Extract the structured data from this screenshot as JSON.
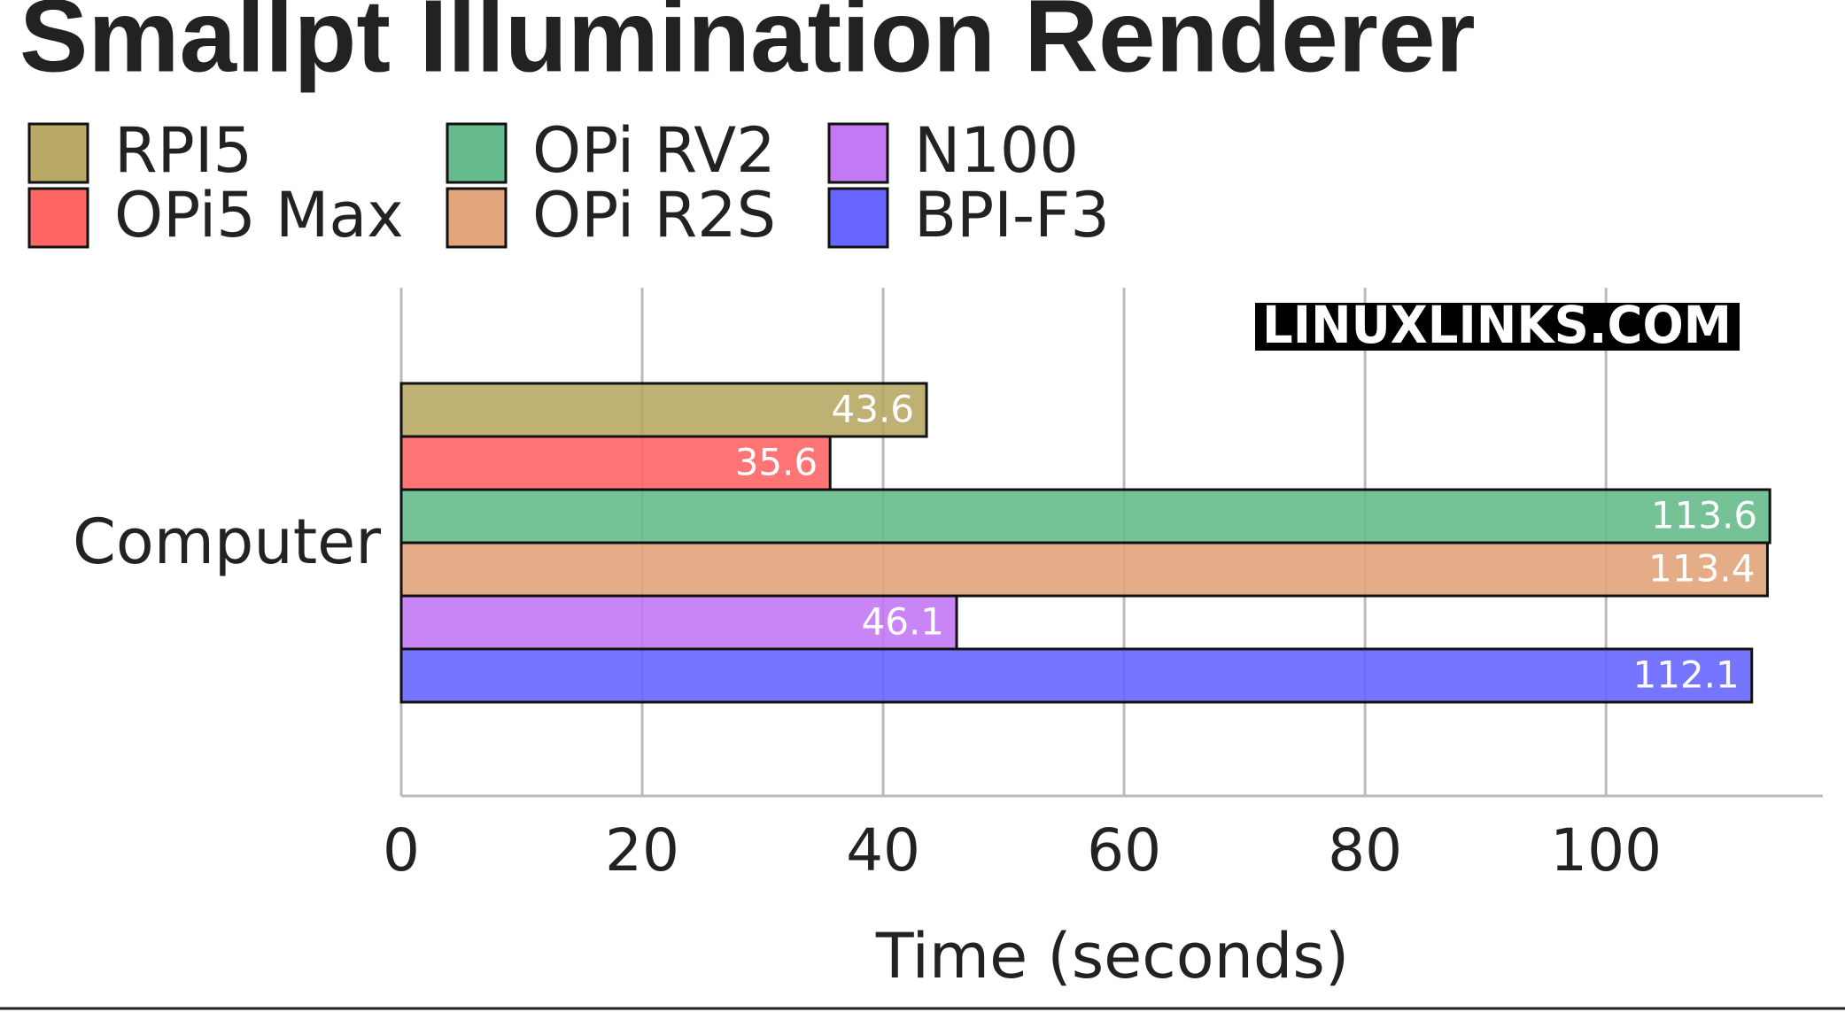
{
  "chart_data": {
    "type": "bar",
    "orientation": "horizontal",
    "title": "Smallpt Illumination Renderer",
    "watermark": "LINUXLINKS.COM",
    "categories": [
      "Computer"
    ],
    "xlabel": "Time (seconds)",
    "xlim": [
      0,
      118
    ],
    "xticks": [
      0,
      20,
      40,
      60,
      80,
      100
    ],
    "grid": true,
    "series": [
      {
        "name": "RPI5",
        "color": "#b8a965",
        "values": [
          43.6
        ]
      },
      {
        "name": "OPi5 Max",
        "color": "#ff6666",
        "values": [
          35.6
        ]
      },
      {
        "name": "OPi RV2",
        "color": "#66bb8c",
        "values": [
          113.6
        ]
      },
      {
        "name": "OPi R2S",
        "color": "#e2a47a",
        "values": [
          113.4
        ]
      },
      {
        "name": "N100",
        "color": "#c378f5",
        "values": [
          46.1
        ]
      },
      {
        "name": "BPI-F3",
        "color": "#6666ff",
        "values": [
          112.1
        ]
      }
    ]
  }
}
